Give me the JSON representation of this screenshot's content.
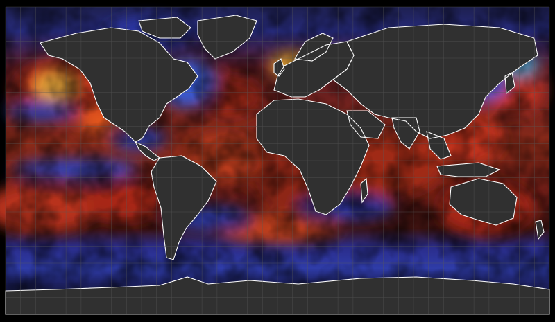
{
  "map": {
    "projection": "equirectangular",
    "lon_range": [
      -180,
      180
    ],
    "lat_range": [
      -90,
      90
    ],
    "graticule_step_deg": 10,
    "land_color": "#303030",
    "coastline_color": "#ffffff",
    "border_color": "#c8c8c8",
    "grid_color": "#5a5a5a",
    "colormap": [
      "#1a1e4a",
      "#2a32a0",
      "#3a64d8",
      "#000000",
      "#7a1a12",
      "#c0301c",
      "#e4561c",
      "#f2b230"
    ]
  }
}
